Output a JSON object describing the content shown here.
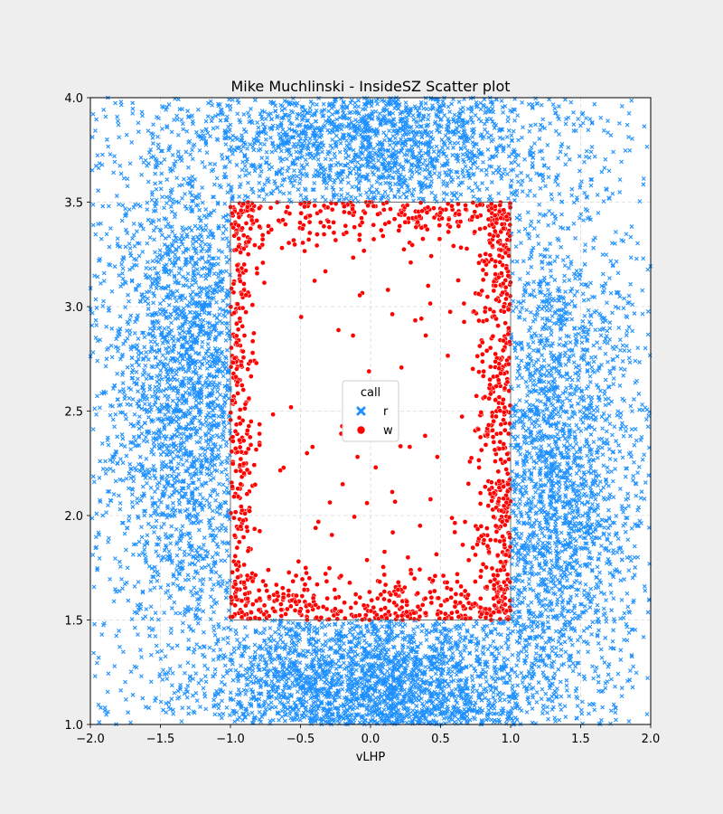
{
  "chart_data": {
    "type": "scatter",
    "title": "Mike Muchlinski - InsideSZ Scatter plot",
    "xlabel": "vLHP",
    "ylabel": "",
    "xlim": [
      -2.0,
      2.0
    ],
    "ylim": [
      1.0,
      4.0
    ],
    "xticks": [
      "−2.0",
      "−1.5",
      "−1.0",
      "−0.5",
      "0.0",
      "0.5",
      "1.0",
      "1.5",
      "2.0"
    ],
    "xtick_values": [
      -2.0,
      -1.5,
      -1.0,
      -0.5,
      0.0,
      0.5,
      1.0,
      1.5,
      2.0
    ],
    "yticks": [
      "1.0",
      "1.5",
      "2.0",
      "2.5",
      "3.0",
      "3.5",
      "4.0"
    ],
    "ytick_values": [
      1.0,
      1.5,
      2.0,
      2.5,
      3.0,
      3.5,
      4.0
    ],
    "grid": true,
    "legend_title": "call",
    "legend_position": "center",
    "strike_zone": {
      "x": [
        -1.0,
        1.0
      ],
      "y": [
        1.5,
        3.5
      ]
    },
    "series": [
      {
        "name": "r",
        "marker": "x",
        "color": "#1e90ff",
        "region": "outside strike zone",
        "approx_count": 9000,
        "density_peaks": [
          [
            0.0,
            1.15
          ],
          [
            0.0,
            3.85
          ],
          [
            -1.3,
            2.6
          ],
          [
            1.3,
            2.2
          ]
        ]
      },
      {
        "name": "w",
        "marker": "o",
        "color": "#ff0000",
        "region": "inside strike zone, concentrated near edges",
        "approx_count": 1400,
        "density_peaks": [
          [
            0.9,
            1.8
          ],
          [
            -0.9,
            3.3
          ],
          [
            0.5,
            1.55
          ],
          [
            -0.9,
            1.6
          ]
        ]
      }
    ]
  }
}
